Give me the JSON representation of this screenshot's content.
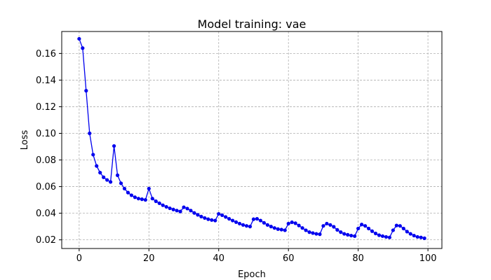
{
  "chart_data": {
    "type": "line",
    "title": "Model training: vae",
    "xlabel": "Epoch",
    "ylabel": "Loss",
    "xlim": [
      -5,
      104
    ],
    "ylim": [
      0.0135,
      0.1765
    ],
    "x_ticks": [
      0,
      20,
      40,
      60,
      80,
      100
    ],
    "y_ticks": [
      0.02,
      0.04,
      0.06,
      0.08,
      0.1,
      0.12,
      0.14,
      0.16
    ],
    "x_tick_labels": [
      "0",
      "20",
      "40",
      "60",
      "80",
      "100"
    ],
    "y_tick_labels": [
      "0.02",
      "0.04",
      "0.06",
      "0.08",
      "0.10",
      "0.12",
      "0.14",
      "0.16"
    ],
    "grid": true,
    "legend": "none",
    "series": [
      {
        "color": "#0000ee",
        "marker": "circle",
        "x": [
          0,
          1,
          2,
          3,
          4,
          5,
          6,
          7,
          8,
          9,
          10,
          11,
          12,
          13,
          14,
          15,
          16,
          17,
          18,
          19,
          20,
          21,
          22,
          23,
          24,
          25,
          26,
          27,
          28,
          29,
          30,
          31,
          32,
          33,
          34,
          35,
          36,
          37,
          38,
          39,
          40,
          41,
          42,
          43,
          44,
          45,
          46,
          47,
          48,
          49,
          50,
          51,
          52,
          53,
          54,
          55,
          56,
          57,
          58,
          59,
          60,
          61,
          62,
          63,
          64,
          65,
          66,
          67,
          68,
          69,
          70,
          71,
          72,
          73,
          74,
          75,
          76,
          77,
          78,
          79,
          80,
          81,
          82,
          83,
          84,
          85,
          86,
          87,
          88,
          89,
          90,
          91,
          92,
          93,
          94,
          95,
          96,
          97,
          98,
          99
        ],
        "y": [
          0.171,
          0.164,
          0.132,
          0.1,
          0.084,
          0.0755,
          0.0705,
          0.067,
          0.065,
          0.0635,
          0.0905,
          0.0685,
          0.0625,
          0.0585,
          0.0555,
          0.0535,
          0.052,
          0.051,
          0.0505,
          0.05,
          0.0585,
          0.051,
          0.049,
          0.0475,
          0.046,
          0.0448,
          0.0437,
          0.0428,
          0.042,
          0.0413,
          0.0445,
          0.0435,
          0.042,
          0.0402,
          0.0388,
          0.0375,
          0.0364,
          0.0355,
          0.0349,
          0.0345,
          0.0395,
          0.0385,
          0.0372,
          0.0358,
          0.0345,
          0.0333,
          0.0322,
          0.0312,
          0.0305,
          0.03,
          0.0355,
          0.0358,
          0.0345,
          0.0328,
          0.0312,
          0.03,
          0.0289,
          0.0281,
          0.0277,
          0.0272,
          0.0322,
          0.0332,
          0.0325,
          0.0308,
          0.0289,
          0.0272,
          0.0258,
          0.0251,
          0.0245,
          0.0242,
          0.0305,
          0.0322,
          0.0312,
          0.0298,
          0.0275,
          0.0258,
          0.0245,
          0.0238,
          0.0232,
          0.0228,
          0.0285,
          0.0315,
          0.0305,
          0.0285,
          0.0265,
          0.0248,
          0.0235,
          0.0228,
          0.0222,
          0.0218,
          0.0272,
          0.0308,
          0.0305,
          0.0285,
          0.0262,
          0.0245,
          0.0232,
          0.0222,
          0.0218,
          0.0212
        ]
      }
    ]
  }
}
